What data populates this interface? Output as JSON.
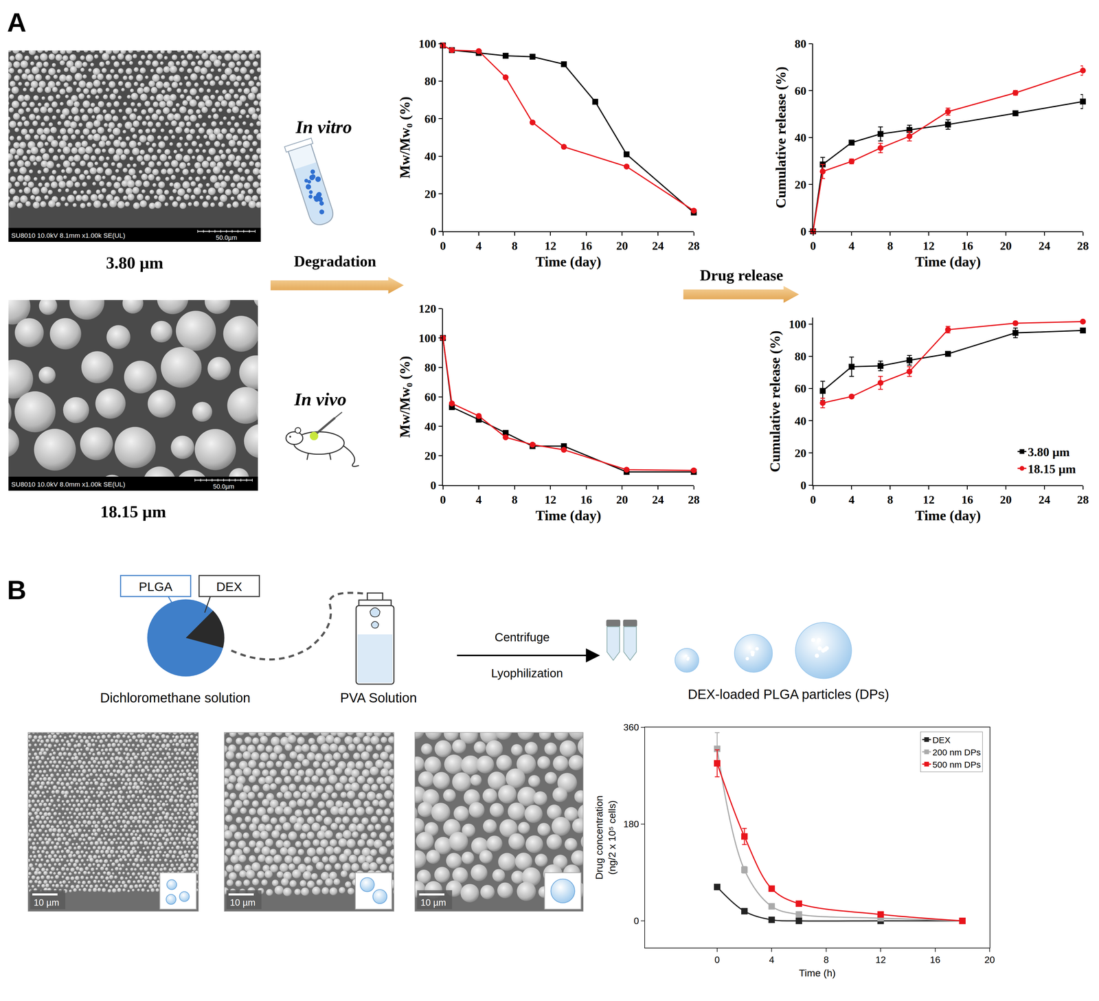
{
  "panels": [
    "A",
    "B"
  ],
  "diagram": {
    "panel_A": {
      "sem": [
        {
          "caption": "3.80 µm",
          "info": "SU8010 10.0kV 8.1mm x1.00k SE(UL)",
          "scale_bar": "50.0µm"
        },
        {
          "caption": "18.15 µm",
          "info": "SU8010 10.0kV 8.0mm x1.00k SE(UL)",
          "scale_bar": "50.0µm"
        }
      ],
      "degradation_arrow": "Degradation",
      "in_vitro": "In vitro",
      "in_vivo": "In vivo",
      "release_arrow": "Drug release"
    },
    "panel_B": {
      "pie_labels": [
        "PLGA",
        "DEX"
      ],
      "solvent": "Dichloromethane solution",
      "aqueous": "PVA Solution",
      "step_above": "Centrifuge",
      "step_below": "Lyophilization",
      "product": "DEX-loaded PLGA particles (DPs)",
      "sem_scale_bars": [
        "10 µm",
        "10 µm",
        "10 µm"
      ]
    }
  },
  "chart_data": [
    {
      "type": "line",
      "x_label": "Time (day)",
      "y_label": "Mw/Mw₀ (%)",
      "xlim": [
        0,
        28
      ],
      "xticks": [
        0,
        4,
        8,
        12,
        16,
        20,
        24,
        28
      ],
      "ylim": [
        0,
        100
      ],
      "yticks": [
        0,
        20,
        40,
        60,
        80,
        100
      ],
      "grid": false,
      "series": [
        {
          "color": "#000000",
          "marker": "square",
          "line_style": "solid",
          "x": [
            0,
            1,
            4,
            7,
            10,
            13.5,
            17,
            20.5,
            28
          ],
          "values": [
            99,
            96.5,
            95,
            93.5,
            93,
            89,
            69,
            41,
            10
          ]
        },
        {
          "color": "#e8141b",
          "marker": "circle",
          "line_style": "solid",
          "x": [
            0,
            1,
            4,
            7,
            10,
            13.5,
            20.5,
            28
          ],
          "values": [
            99,
            96.5,
            96,
            82,
            58,
            45,
            34.5,
            11
          ]
        }
      ]
    },
    {
      "type": "line",
      "x_label": "Time (day)",
      "y_label": "Cumulative release (%)",
      "xlim": [
        0,
        28
      ],
      "xticks": [
        0,
        4,
        8,
        12,
        16,
        20,
        24,
        28
      ],
      "ylim": [
        0,
        80
      ],
      "yticks": [
        0,
        20,
        40,
        60,
        80
      ],
      "grid": false,
      "series": [
        {
          "color": "#000000",
          "marker": "square",
          "line_style": "solid",
          "x": [
            0,
            1,
            4,
            7,
            10,
            14,
            21,
            28
          ],
          "values": [
            0,
            28.5,
            37.8,
            41.5,
            43.2,
            45.5,
            50.3,
            55.3
          ],
          "error": [
            0,
            3,
            1,
            3,
            2,
            2,
            1,
            3
          ]
        },
        {
          "color": "#e8141b",
          "marker": "circle",
          "line_style": "solid",
          "x": [
            0,
            1,
            4,
            7,
            10,
            14,
            21,
            28
          ],
          "values": [
            0,
            25.5,
            29.8,
            35.5,
            40.5,
            51,
            59,
            68.5
          ],
          "error": [
            0,
            3,
            1,
            2,
            2,
            1.5,
            1,
            2
          ]
        }
      ]
    },
    {
      "type": "line",
      "x_label": "Time (day)",
      "y_label": "Mw/Mw₀ (%)",
      "xlim": [
        0,
        28
      ],
      "xticks": [
        0,
        4,
        8,
        12,
        16,
        20,
        24,
        28
      ],
      "ylim": [
        0,
        120
      ],
      "yticks": [
        0,
        20,
        40,
        60,
        80,
        100,
        120
      ],
      "grid": false,
      "series": [
        {
          "color": "#000000",
          "marker": "square",
          "line_style": "solid",
          "x": [
            0,
            1,
            4,
            7,
            10,
            13.5,
            20.5,
            28
          ],
          "values": [
            100,
            53,
            44.5,
            35.5,
            26.5,
            26.5,
            9,
            9
          ]
        },
        {
          "color": "#e8141b",
          "marker": "circle",
          "line_style": "solid",
          "x": [
            0,
            1,
            4,
            7,
            10,
            13.5,
            20.5,
            28
          ],
          "values": [
            100,
            55.5,
            47,
            32.5,
            27.5,
            24,
            10.5,
            10
          ]
        }
      ]
    },
    {
      "type": "line",
      "x_label": "Time (day)",
      "y_label": "Cumulative release (%)",
      "xlim": [
        0,
        28
      ],
      "xticks": [
        0,
        4,
        8,
        12,
        16,
        20,
        24,
        28
      ],
      "ylim": [
        0,
        104
      ],
      "yticks": [
        0,
        20,
        40,
        60,
        80,
        100
      ],
      "grid": false,
      "legend": "lower right",
      "series": [
        {
          "name": "3.80 µm",
          "color": "#000000",
          "marker": "square",
          "line_style": "solid",
          "x": [
            1,
            4,
            7,
            10,
            14,
            21,
            28
          ],
          "values": [
            58.5,
            73.5,
            74,
            77.5,
            81.5,
            94.5,
            96
          ],
          "error": [
            6,
            6,
            3,
            3,
            1,
            3,
            1
          ]
        },
        {
          "name": "18.15 µm",
          "color": "#e8141b",
          "marker": "circle",
          "line_style": "solid",
          "x": [
            1,
            4,
            7,
            10,
            14,
            21,
            28
          ],
          "values": [
            51,
            55,
            63.5,
            70.5,
            96.5,
            100.5,
            101.5
          ],
          "error": [
            3,
            1,
            4,
            3,
            2,
            1,
            1
          ]
        }
      ]
    },
    {
      "type": "line",
      "x_label": "Time (h)",
      "y_label": "Drug concentration (ng/2 x 10⁵ cells)",
      "xlim": [
        -5.3,
        20
      ],
      "xticks": [
        0,
        4,
        8,
        12,
        16,
        20
      ],
      "ylim": [
        -50,
        360
      ],
      "yticks": [
        0,
        180,
        360
      ],
      "grid": false,
      "legend": "upper right",
      "series": [
        {
          "name": "DEX",
          "color": "#222222",
          "marker": "square",
          "line_style": "smooth",
          "x": [
            0,
            2,
            4,
            6,
            12,
            18
          ],
          "values": [
            63,
            18,
            2,
            0,
            0,
            0
          ]
        },
        {
          "name": "200 nm DPs",
          "color": "#aaaaaa",
          "marker": "square",
          "line_style": "smooth",
          "x": [
            0,
            2,
            4,
            6,
            12,
            18
          ],
          "values": [
            320,
            95,
            27,
            12,
            5,
            0
          ],
          "error": [
            30,
            6,
            5,
            3,
            2,
            0
          ]
        },
        {
          "name": "500 nm DPs",
          "color": "#e8141b",
          "marker": "square",
          "line_style": "smooth",
          "x": [
            0,
            2,
            4,
            6,
            12,
            18
          ],
          "values": [
            293,
            157,
            60,
            32,
            12,
            0
          ],
          "error": [
            25,
            15,
            5,
            4,
            3,
            0
          ]
        }
      ]
    }
  ]
}
